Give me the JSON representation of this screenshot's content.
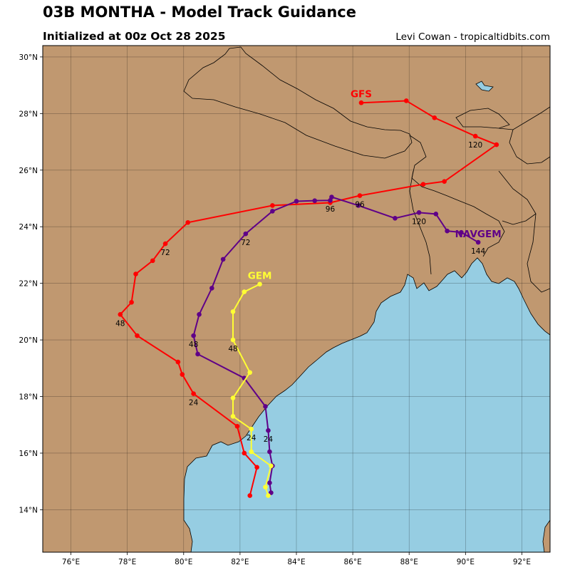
{
  "header": {
    "title": "03B MONTHA - Model Track Guidance",
    "subtitle": "Initialized at 00z Oct 28 2025",
    "credit": "Levi Cowan - tropicaltidbits.com"
  },
  "colors": {
    "land": "#c09870",
    "water": "#96cde2",
    "GFS": "#ff0000",
    "NAVGEM": "#5f0088",
    "GEM": "#ffff33"
  },
  "map": {
    "lon_range": [
      75,
      93
    ],
    "lat_range": [
      12.5,
      30.4
    ],
    "lon_ticks": [
      {
        "value": 76,
        "label": "76°E"
      },
      {
        "value": 78,
        "label": "78°E"
      },
      {
        "value": 80,
        "label": "80°E"
      },
      {
        "value": 82,
        "label": "82°E"
      },
      {
        "value": 84,
        "label": "84°E"
      },
      {
        "value": 86,
        "label": "86°E"
      },
      {
        "value": 88,
        "label": "88°E"
      },
      {
        "value": 90,
        "label": "90°E"
      },
      {
        "value": 92,
        "label": "92°E"
      }
    ],
    "lat_ticks": [
      {
        "value": 14,
        "label": "14°N"
      },
      {
        "value": 16,
        "label": "16°N"
      },
      {
        "value": 18,
        "label": "18°N"
      },
      {
        "value": 20,
        "label": "20°N"
      },
      {
        "value": 22,
        "label": "22°N"
      },
      {
        "value": 24,
        "label": "24°N"
      },
      {
        "value": 26,
        "label": "26°N"
      },
      {
        "value": 28,
        "label": "28°N"
      },
      {
        "value": 30,
        "label": "30°N"
      }
    ],
    "grid": true
  },
  "tracks": [
    {
      "name": "GFS",
      "color": "#ff0000",
      "points": [
        [
          82.35,
          14.5
        ],
        [
          82.6,
          15.5
        ],
        [
          82.15,
          16.0
        ],
        [
          81.9,
          16.95
        ],
        [
          80.35,
          18.1
        ],
        [
          79.95,
          18.78
        ],
        [
          79.8,
          19.22
        ],
        [
          78.35,
          20.15
        ],
        [
          77.75,
          20.9
        ],
        [
          78.15,
          21.33
        ],
        [
          78.3,
          22.33
        ],
        [
          78.9,
          22.8
        ],
        [
          79.35,
          23.4
        ],
        [
          80.15,
          24.15
        ],
        [
          83.15,
          24.75
        ],
        [
          85.2,
          24.85
        ],
        [
          86.25,
          25.1
        ],
        [
          88.5,
          25.5
        ],
        [
          89.25,
          25.6
        ],
        [
          91.1,
          26.9
        ],
        [
          90.35,
          27.2
        ],
        [
          88.9,
          27.85
        ],
        [
          87.9,
          28.45
        ],
        [
          86.3,
          28.38
        ]
      ],
      "hour_labels": [
        {
          "text": "24",
          "lon": 80.35,
          "lat": 17.8
        },
        {
          "text": "48",
          "lon": 77.75,
          "lat": 20.6
        },
        {
          "text": "72",
          "lon": 79.35,
          "lat": 23.1
        },
        {
          "text": "96",
          "lon": 86.25,
          "lat": 24.8
        },
        {
          "text": "120",
          "lon": 90.35,
          "lat": 26.9
        }
      ],
      "model_label": {
        "text": "GFS",
        "lon": 86.3,
        "lat": 28.7
      }
    },
    {
      "name": "NAVGEM",
      "color": "#5f0088",
      "points": [
        [
          83.1,
          14.6
        ],
        [
          83.05,
          14.95
        ],
        [
          83.15,
          15.55
        ],
        [
          83.05,
          16.05
        ],
        [
          83.0,
          16.8
        ],
        [
          82.9,
          17.65
        ],
        [
          82.15,
          18.65
        ],
        [
          80.5,
          19.5
        ],
        [
          80.35,
          20.15
        ],
        [
          80.55,
          20.9
        ],
        [
          81.0,
          21.83
        ],
        [
          81.4,
          22.85
        ],
        [
          82.2,
          23.75
        ],
        [
          83.15,
          24.55
        ],
        [
          84.0,
          24.9
        ],
        [
          84.65,
          24.92
        ],
        [
          85.2,
          24.93
        ],
        [
          85.25,
          25.05
        ],
        [
          86.2,
          24.75
        ],
        [
          87.5,
          24.3
        ],
        [
          88.35,
          24.5
        ],
        [
          88.95,
          24.45
        ],
        [
          89.35,
          23.85
        ],
        [
          89.85,
          23.8
        ],
        [
          90.45,
          23.45
        ]
      ],
      "hour_labels": [
        {
          "text": "24",
          "lon": 83.0,
          "lat": 16.5
        },
        {
          "text": "48",
          "lon": 80.35,
          "lat": 19.85
        },
        {
          "text": "72",
          "lon": 82.2,
          "lat": 23.45
        },
        {
          "text": "96",
          "lon": 85.2,
          "lat": 24.63
        },
        {
          "text": "120",
          "lon": 88.35,
          "lat": 24.2
        },
        {
          "text": "144",
          "lon": 90.45,
          "lat": 23.15
        }
      ],
      "model_label": {
        "text": "NAVGEM",
        "lon": 90.45,
        "lat": 23.75
      }
    },
    {
      "name": "GEM",
      "color": "#ffff33",
      "points": [
        [
          83.0,
          14.5
        ],
        [
          82.9,
          14.8
        ],
        [
          83.1,
          15.55
        ],
        [
          82.4,
          16.05
        ],
        [
          82.4,
          16.85
        ],
        [
          81.75,
          17.3
        ],
        [
          81.75,
          17.95
        ],
        [
          82.35,
          18.85
        ],
        [
          81.75,
          20.0
        ],
        [
          81.75,
          21.0
        ],
        [
          82.15,
          21.7
        ],
        [
          82.7,
          21.97
        ]
      ],
      "hour_labels": [
        {
          "text": "24",
          "lon": 82.4,
          "lat": 16.55
        },
        {
          "text": "48",
          "lon": 81.75,
          "lat": 19.7
        }
      ],
      "model_label": {
        "text": "GEM",
        "lon": 82.7,
        "lat": 22.28
      }
    }
  ]
}
